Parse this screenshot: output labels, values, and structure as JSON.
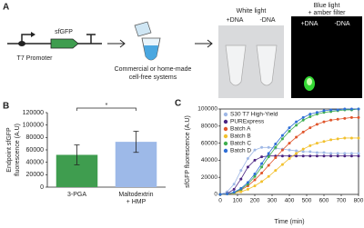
{
  "panel_a": {
    "label": "A",
    "promoter": "T7 Promoter",
    "gene": "sfGFP",
    "systems": [
      "Commercial or home-made",
      "cell-free systems"
    ],
    "white_light": {
      "title": "White light",
      "lanes": [
        "+DNA",
        "-DNA"
      ]
    },
    "blue_light": {
      "title": [
        "Blue light",
        "+ amber filter"
      ],
      "lanes": [
        "+DNA",
        "-DNA"
      ]
    }
  },
  "chart_data": [
    {
      "type": "bar",
      "panel_label": "B",
      "y_label": [
        "Endpoint sfGFP",
        "fluorescence (A.U)"
      ],
      "categories": [
        "3-PGA",
        "Maltodextrin + HMP"
      ],
      "values": [
        52000,
        73000
      ],
      "errors": [
        16000,
        17000
      ],
      "colors": [
        "#3f9d4f",
        "#9db9e8"
      ],
      "significance": "*",
      "ylim": [
        0,
        120000
      ],
      "yticks": [
        0,
        20000,
        40000,
        60000,
        80000,
        100000,
        120000
      ]
    },
    {
      "type": "line",
      "panel_label": "C",
      "x_label": "Time (min)",
      "y_label": "sfGFP fluorescence (A.U)",
      "x": [
        0,
        40,
        80,
        120,
        160,
        200,
        240,
        280,
        320,
        360,
        400,
        440,
        480,
        520,
        560,
        600,
        640,
        680,
        720,
        760,
        800
      ],
      "series": [
        {
          "name": "S30 T7 High-Yield",
          "color": "#9fb8e6",
          "values": [
            0,
            3000,
            12000,
            28000,
            42000,
            52000,
            55000,
            55000,
            54000,
            53000,
            52000,
            51000,
            50000,
            50000,
            49000,
            49000,
            48000,
            48000,
            48000,
            48000,
            48000
          ]
        },
        {
          "name": "PURExpress",
          "color": "#4b2482",
          "values": [
            0,
            1000,
            6000,
            18000,
            32000,
            40000,
            44000,
            45000,
            45000,
            45000,
            45000,
            45000,
            45000,
            45000,
            45000,
            45000,
            45000,
            45000,
            45000,
            45000,
            45000
          ]
        },
        {
          "name": "Batch A",
          "color": "#e0552b",
          "values": [
            0,
            500,
            2000,
            5000,
            10000,
            17000,
            25000,
            34000,
            43000,
            52000,
            60000,
            67000,
            73000,
            78000,
            82000,
            85000,
            87000,
            88000,
            89000,
            90000,
            90000
          ]
        },
        {
          "name": "Batch B",
          "color": "#f2c12e",
          "values": [
            0,
            500,
            1500,
            3000,
            6000,
            10000,
            15000,
            21000,
            28000,
            35000,
            42000,
            48000,
            53000,
            57000,
            60000,
            62000,
            64000,
            65000,
            66000,
            66000,
            66000
          ]
        },
        {
          "name": "Batch C",
          "color": "#3fae4f",
          "values": [
            0,
            500,
            2000,
            6000,
            12000,
            21000,
            32000,
            44000,
            55000,
            65000,
            74000,
            81000,
            87000,
            91000,
            94000,
            96000,
            97000,
            98000,
            99000,
            99000,
            100000
          ]
        },
        {
          "name": "Batch D",
          "color": "#2f6fd6",
          "values": [
            0,
            500,
            2500,
            7000,
            14000,
            24000,
            36000,
            48000,
            59000,
            69000,
            78000,
            85000,
            90000,
            94000,
            96000,
            98000,
            99000,
            99000,
            100000,
            100000,
            100000
          ]
        }
      ],
      "xlim": [
        0,
        800
      ],
      "xticks": [
        0,
        100,
        200,
        300,
        400,
        500,
        600,
        700,
        800
      ],
      "ylim": [
        0,
        100000
      ],
      "yticks": [
        0,
        20000,
        40000,
        60000,
        80000,
        100000
      ]
    }
  ]
}
